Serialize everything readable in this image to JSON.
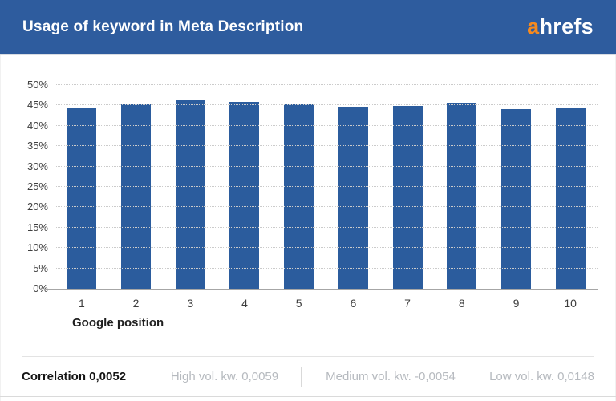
{
  "header": {
    "title": "Usage of keyword in Meta Description",
    "logo_a": "a",
    "logo_rest": "hrefs"
  },
  "chart_data": {
    "type": "bar",
    "title": "Usage of keyword in Meta Description",
    "categories": [
      "1",
      "2",
      "3",
      "4",
      "5",
      "6",
      "7",
      "8",
      "9",
      "10"
    ],
    "values": [
      44.2,
      45.2,
      46.2,
      45.9,
      45.3,
      44.6,
      44.9,
      45.5,
      44.1,
      44.2
    ],
    "unit": "%",
    "xlabel": "Google position",
    "ylabel": "",
    "ylim": [
      0,
      50
    ],
    "ytick_step": 5,
    "ytick_labels": [
      "0%",
      "5%",
      "10%",
      "15%",
      "20%",
      "25%",
      "30%",
      "35%",
      "40%",
      "45%",
      "50%"
    ],
    "grid": "horizontal-dotted",
    "legend": "none",
    "bar_color": "#2b5c9d"
  },
  "footer": {
    "correlation": "Correlation 0,0052",
    "high": "High vol. kw. 0,0059",
    "medium": "Medium vol. kw. -0,0054",
    "low": "Low vol. kw. 0,0148"
  },
  "colors": {
    "header_bg": "#2e5c9e",
    "logo_accent": "#f68a1e",
    "bar": "#2b5c9d",
    "gridline": "#cbcbcb",
    "axis_line": "#a6a6a6",
    "footer_muted": "#b6babf"
  }
}
